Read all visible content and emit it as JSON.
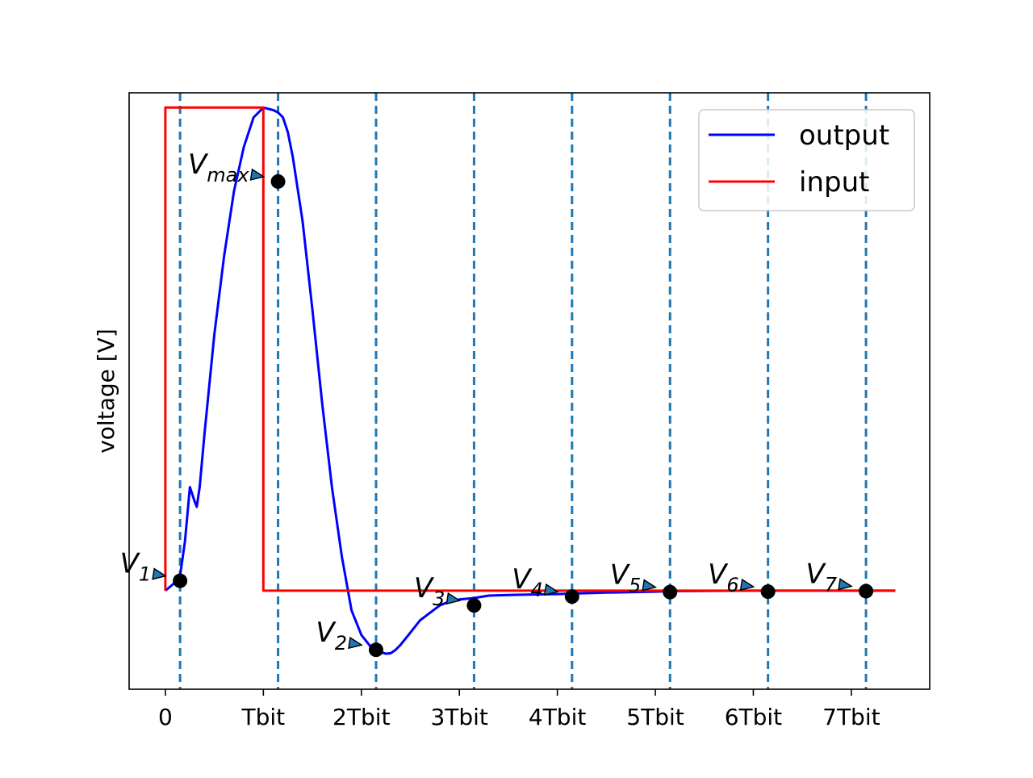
{
  "chart_data": {
    "type": "line",
    "xlabel": "",
    "ylabel": "voltage [V]",
    "xlim": [
      -0.37,
      7.8
    ],
    "ylim": [
      -0.2,
      1.01
    ],
    "xticks": [
      {
        "value": 0,
        "label": "0"
      },
      {
        "value": 1,
        "label": "Tbit"
      },
      {
        "value": 2,
        "label": "2Tbit"
      },
      {
        "value": 3,
        "label": "3Tbit"
      },
      {
        "value": 4,
        "label": "4Tbit"
      },
      {
        "value": 5,
        "label": "5Tbit"
      },
      {
        "value": 6,
        "label": "6Tbit"
      },
      {
        "value": 7,
        "label": "7Tbit"
      }
    ],
    "yticks_visible": false,
    "grid": false,
    "legend": {
      "placement": "upper right",
      "entries": [
        {
          "label": "output",
          "color": "#0000ff"
        },
        {
          "label": "input",
          "color": "#ff0000"
        }
      ]
    },
    "series": [
      {
        "name": "output",
        "color": "#0000ff",
        "x": [
          0,
          0.12,
          0.15,
          0.2,
          0.25,
          0.3,
          0.32,
          0.35,
          0.4,
          0.5,
          0.6,
          0.7,
          0.8,
          0.9,
          1.0,
          1.1,
          1.15,
          1.2,
          1.25,
          1.3,
          1.4,
          1.5,
          1.6,
          1.7,
          1.8,
          1.9,
          2.0,
          2.1,
          2.15,
          2.2,
          2.25,
          2.3,
          2.35,
          2.4,
          2.5,
          2.6,
          2.7,
          2.8,
          2.9,
          3.0,
          3.1,
          3.15,
          3.3,
          3.5,
          3.7,
          4.0,
          4.15,
          4.5,
          5.0,
          5.15,
          5.5,
          6.0,
          6.15,
          6.5,
          7.0,
          7.15,
          7.45
        ],
        "y": [
          0.0,
          0.02,
          0.03,
          0.1,
          0.21,
          0.18,
          0.17,
          0.21,
          0.32,
          0.52,
          0.68,
          0.81,
          0.9,
          0.96,
          0.98,
          0.975,
          0.97,
          0.96,
          0.93,
          0.88,
          0.75,
          0.57,
          0.38,
          0.21,
          0.07,
          -0.04,
          -0.09,
          -0.115,
          -0.12,
          -0.125,
          -0.128,
          -0.127,
          -0.12,
          -0.11,
          -0.085,
          -0.06,
          -0.045,
          -0.03,
          -0.022,
          -0.018,
          -0.016,
          -0.015,
          -0.01,
          -0.009,
          -0.008,
          -0.007,
          -0.006,
          -0.004,
          -0.002,
          -0.001,
          -0.0005,
          0.0,
          0.0,
          0.0,
          0.0,
          0.0,
          0.0
        ]
      },
      {
        "name": "input",
        "color": "#ff0000",
        "x": [
          0,
          0,
          1,
          1,
          7.45
        ],
        "y": [
          0,
          0.98,
          0.98,
          0,
          0
        ]
      }
    ],
    "vlines": {
      "color": "#1f77b4",
      "style": "dashed",
      "x": [
        0.15,
        1.15,
        2.15,
        3.15,
        4.15,
        5.15,
        6.15,
        7.15
      ]
    },
    "markers": [
      {
        "name": "V1",
        "base": "V",
        "sub": "1",
        "x": 0.15,
        "y": 0.02
      },
      {
        "name": "Vmax",
        "base": "V",
        "sub": "max",
        "x": 1.15,
        "y": 0.83
      },
      {
        "name": "V2",
        "base": "V",
        "sub": "2",
        "x": 2.15,
        "y": -0.12
      },
      {
        "name": "V3",
        "base": "V",
        "sub": "3",
        "x": 3.15,
        "y": -0.03
      },
      {
        "name": "V4",
        "base": "V",
        "sub": "4",
        "x": 4.15,
        "y": -0.012
      },
      {
        "name": "V5",
        "base": "V",
        "sub": "5",
        "x": 5.15,
        "y": -0.003
      },
      {
        "name": "V6",
        "base": "V",
        "sub": "6",
        "x": 6.15,
        "y": -0.002
      },
      {
        "name": "V7",
        "base": "V",
        "sub": "7",
        "x": 7.15,
        "y": -0.001
      }
    ]
  }
}
